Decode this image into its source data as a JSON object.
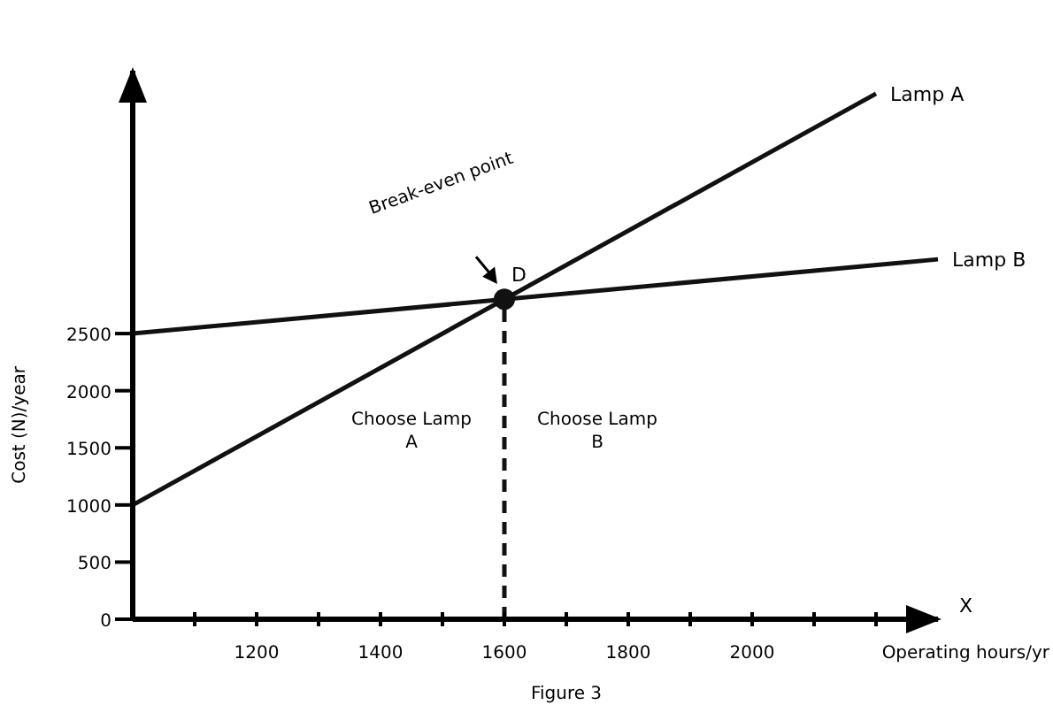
{
  "chart_data": {
    "type": "line",
    "xlabel": "Operating hours/yr",
    "ylabel": "Cost (N)/year",
    "xlim": [
      1000,
      2300
    ],
    "ylim": [
      0,
      4800
    ],
    "xticks": [
      {
        "value": 1100,
        "label": null
      },
      {
        "value": 1200,
        "label": "1200"
      },
      {
        "value": 1300,
        "label": null
      },
      {
        "value": 1400,
        "label": "1400"
      },
      {
        "value": 1500,
        "label": null
      },
      {
        "value": 1600,
        "label": "1600"
      },
      {
        "value": 1700,
        "label": null
      },
      {
        "value": 1800,
        "label": "1800"
      },
      {
        "value": 1900,
        "label": null
      },
      {
        "value": 2000,
        "label": "2000"
      },
      {
        "value": 2100,
        "label": null
      },
      {
        "value": 2200,
        "label": null
      }
    ],
    "yticks": [
      0,
      500,
      1000,
      1500,
      2000,
      2500
    ],
    "series": [
      {
        "name": "Lamp A",
        "color": "#111111",
        "x": [
          1000,
          2200
        ],
        "values": [
          1000,
          4600
        ]
      },
      {
        "name": "Lamp B",
        "color": "#111111",
        "x": [
          1000,
          2300
        ],
        "values": [
          2500,
          3150
        ]
      },
      {
        "type": "scatter",
        "color": "#111111",
        "marker": "circle",
        "x": [
          1600
        ],
        "values": [
          2800
        ]
      }
    ],
    "marker": "none",
    "line_style": "solid",
    "grid": false,
    "ref_lines": [
      {
        "axis": "x",
        "value": 1600,
        "line_style": "dashed",
        "color": "#111111"
      }
    ],
    "annotations": [
      "Break-even point",
      {
        "text": "D",
        "x": 1600,
        "y": 2800
      },
      "Choose Lamp A",
      "Choose Lamp B",
      "X",
      "Figure 3"
    ]
  }
}
